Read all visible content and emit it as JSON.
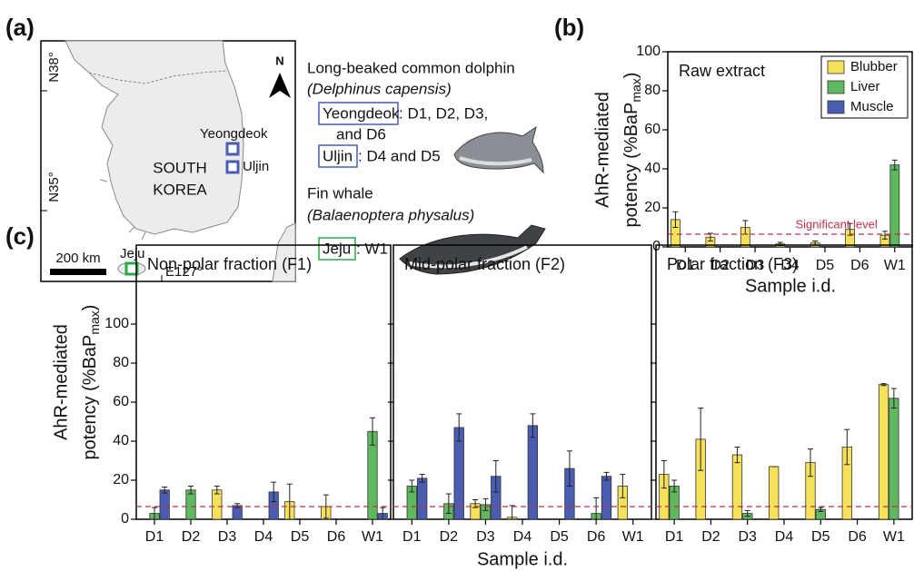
{
  "panel_labels": [
    "(a)",
    "(b)",
    "(c)"
  ],
  "map": {
    "lat_labels": [
      "N38°",
      "N35°"
    ],
    "lon_label": "E127°",
    "country": [
      "SOUTH",
      "KOREA"
    ],
    "sites": [
      "Yeongdeok",
      "Uljin",
      "Jeju"
    ],
    "scale": "200 km",
    "north": "N"
  },
  "species_key": {
    "dolphin_name": "Long-beaked common dolphin",
    "dolphin_species": "(Delphinus capensis)",
    "dolphin_sites": [
      {
        "site": "Yeongdeok",
        "samples": ": D1, D2, D3,",
        "samples_cont": "and D6"
      },
      {
        "site": "Uljin",
        "samples": ": D4 and D5"
      }
    ],
    "whale_name": "Fin whale",
    "whale_species": "(Balaenoptera physalus)",
    "whale_sites": [
      {
        "site": "Jeju",
        "samples": ": W1"
      }
    ]
  },
  "chart_data": [
    {
      "type": "bar",
      "title": "Raw extract",
      "categories": [
        "D1",
        "D2",
        "D3",
        "D4",
        "D5",
        "D6",
        "W1"
      ],
      "series": [
        {
          "name": "Blubber",
          "color": "#f6e15a",
          "values": [
            14,
            5,
            10,
            1.5,
            2,
            9,
            6
          ],
          "errors": [
            4,
            2,
            3.5,
            0.8,
            1,
            3,
            2
          ]
        },
        {
          "name": "Liver",
          "color": "#5db85e",
          "values": [
            null,
            null,
            null,
            null,
            null,
            null,
            42
          ],
          "errors": [
            null,
            null,
            null,
            null,
            null,
            null,
            2.5
          ]
        },
        {
          "name": "Muscle",
          "color": "#4a5db0",
          "values": [
            null,
            null,
            null,
            null,
            null,
            null,
            null
          ],
          "errors": [
            null,
            null,
            null,
            null,
            null,
            null,
            null
          ]
        }
      ],
      "ylim": [
        0,
        100
      ],
      "yticks": [
        0,
        20,
        40,
        60,
        80,
        100
      ],
      "ylabel": [
        "AhR-mediated",
        "potency (%BaP",
        "max",
        ")"
      ],
      "xlabel": "Sample i.d.",
      "threshold": 6.5,
      "threshold_label": "Significant level",
      "legend": "upper right"
    },
    {
      "type": "bar",
      "title": "Non-polar fraction (F1)",
      "categories": [
        "D1",
        "D2",
        "D3",
        "D4",
        "D5",
        "D6",
        "W1"
      ],
      "series": [
        {
          "color": "#f6e15a",
          "values": [
            null,
            null,
            15,
            null,
            9,
            6.5,
            null
          ],
          "errors": [
            null,
            null,
            2,
            null,
            9,
            6,
            null
          ]
        },
        {
          "color": "#5db85e",
          "values": [
            3,
            15,
            null,
            null,
            null,
            null,
            45
          ],
          "errors": [
            3,
            2,
            null,
            null,
            null,
            null,
            7
          ]
        },
        {
          "color": "#4a5db0",
          "values": [
            15,
            null,
            7,
            14,
            null,
            null,
            3
          ],
          "errors": [
            1.5,
            null,
            1,
            5,
            null,
            null,
            3
          ]
        }
      ],
      "ylim": [
        0,
        100
      ],
      "yticks": [
        0,
        20,
        40,
        60,
        80,
        100
      ],
      "ylabel": [
        "AhR-mediated",
        "potency (%BaP",
        "max",
        ")"
      ],
      "threshold": 6.5
    },
    {
      "type": "bar",
      "title": "Mid-polar fraction (F2)",
      "categories": [
        "D1",
        "D2",
        "D3",
        "D4",
        "D5",
        "D6",
        "W1"
      ],
      "series": [
        {
          "color": "#f6e15a",
          "values": [
            null,
            null,
            8,
            1,
            null,
            null,
            17
          ],
          "errors": [
            null,
            null,
            2,
            6,
            null,
            null,
            6
          ]
        },
        {
          "color": "#5db85e",
          "values": [
            17,
            8,
            7.5,
            null,
            null,
            3,
            null
          ],
          "errors": [
            3,
            5,
            3,
            null,
            null,
            8,
            null
          ]
        },
        {
          "color": "#4a5db0",
          "values": [
            21,
            47,
            22,
            48,
            26,
            22,
            null
          ],
          "errors": [
            2,
            7,
            8,
            6,
            9,
            2,
            null
          ]
        }
      ],
      "ylim": [
        0,
        100
      ],
      "xlabel": "Sample i.d.",
      "threshold": 6.5
    },
    {
      "type": "bar",
      "title": "Polar fraction (F3)",
      "categories": [
        "D1",
        "D2",
        "D3",
        "D4",
        "D5",
        "D6",
        "W1"
      ],
      "series": [
        {
          "color": "#f6e15a",
          "values": [
            23,
            41,
            33,
            27,
            29,
            37,
            69
          ],
          "errors": [
            7,
            16,
            4,
            0,
            7,
            9,
            0.5
          ]
        },
        {
          "color": "#5db85e",
          "values": [
            17,
            null,
            3,
            null,
            5,
            null,
            62
          ],
          "errors": [
            3,
            null,
            1.5,
            null,
            1,
            null,
            5
          ]
        },
        {
          "color": "#4a5db0",
          "values": [
            null,
            null,
            null,
            null,
            null,
            null,
            null
          ],
          "errors": [
            null,
            null,
            null,
            null,
            null,
            null,
            null
          ]
        }
      ],
      "ylim": [
        0,
        100
      ],
      "threshold": 6.5
    }
  ]
}
